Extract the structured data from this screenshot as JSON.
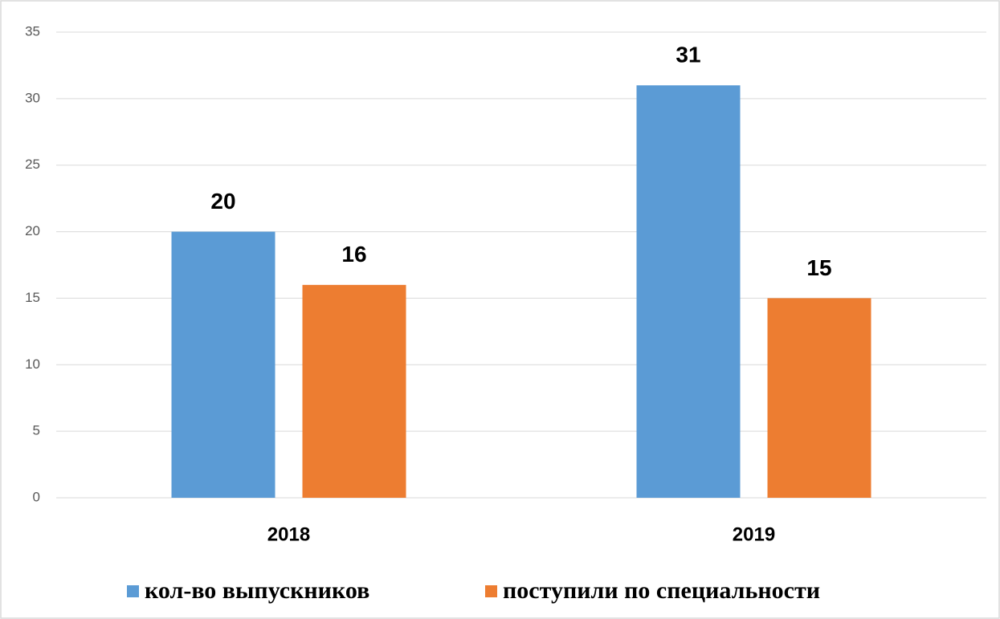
{
  "chart_data": {
    "type": "bar",
    "categories": [
      "2018",
      "2019"
    ],
    "series": [
      {
        "name": "кол-во выпускников",
        "color": "#5b9bd5",
        "values": [
          20,
          31
        ]
      },
      {
        "name": "поступили по специальности",
        "color": "#ed7d31",
        "values": [
          16,
          15
        ]
      }
    ],
    "ylim": [
      0,
      35
    ],
    "yticks": [
      0,
      5,
      10,
      15,
      20,
      25,
      30,
      35
    ],
    "grid": true,
    "legend": "bottom"
  }
}
